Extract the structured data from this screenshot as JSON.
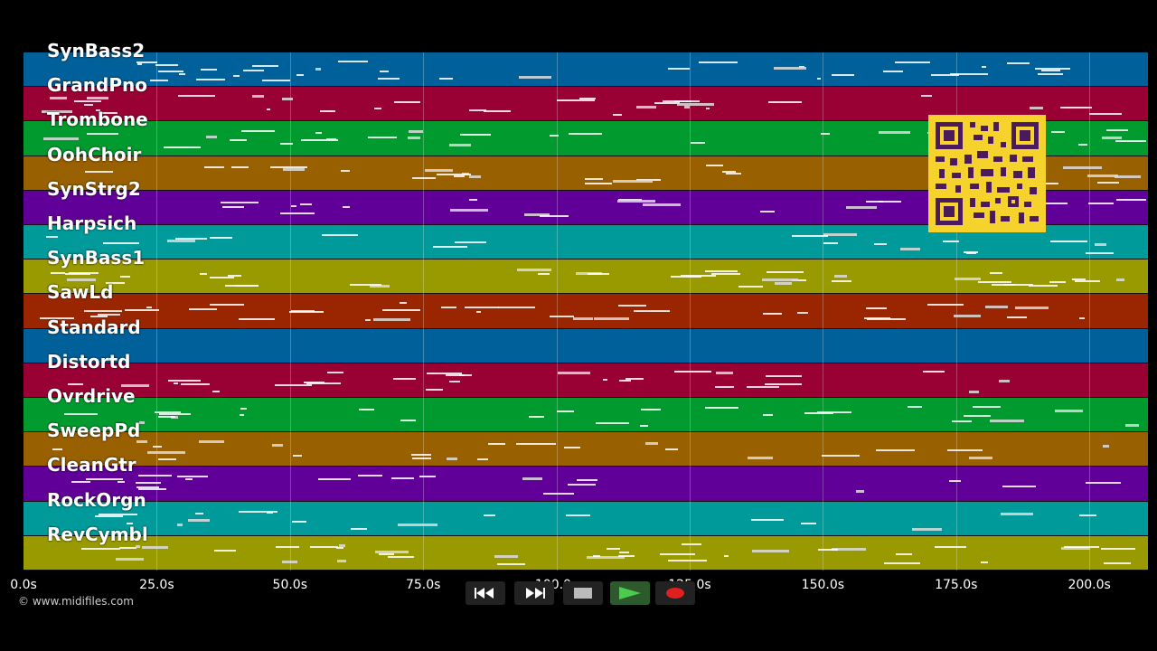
{
  "tracks": [
    {
      "name": "SynBass2",
      "color": "#00609a"
    },
    {
      "name": "GrandPno",
      "color": "#990033"
    },
    {
      "name": "Trombone",
      "color": "#009a2e"
    },
    {
      "name": "OohChoir",
      "color": "#996000"
    },
    {
      "name": "SynStrg2",
      "color": "#600099"
    },
    {
      "name": "Harpsich",
      "color": "#009a9a"
    },
    {
      "name": "SynBass1",
      "color": "#999900"
    },
    {
      "name": "SawLd",
      "color": "#992600"
    },
    {
      "name": "Standard",
      "color": "#00609a"
    },
    {
      "name": "Distortd",
      "color": "#990033"
    },
    {
      "name": "Ovrdrive",
      "color": "#009a2e"
    },
    {
      "name": "SweepPd",
      "color": "#996000"
    },
    {
      "name": "CleanGtr",
      "color": "#600099"
    },
    {
      "name": "RockOrgn",
      "color": "#009a9a"
    },
    {
      "name": "RevCymbl",
      "color": "#999900"
    }
  ],
  "timeline": {
    "ticks": [
      "0.0s",
      "25.0s",
      "50.0s",
      "75.0s",
      "100.0s",
      "125.0s",
      "150.0s",
      "175.0s",
      "200.0s"
    ],
    "tick_values": [
      0,
      25,
      50,
      75,
      100,
      125,
      150,
      175,
      200
    ],
    "max_seconds": 211
  },
  "copyright": "© www.midifiles.com",
  "controls": {
    "rewind": "rewind-icon",
    "fast_forward": "fast-forward-icon",
    "stop": "stop-icon",
    "play": "play-icon",
    "record": "record-icon",
    "play_color": "#3aa23a",
    "record_color": "#e02020"
  }
}
